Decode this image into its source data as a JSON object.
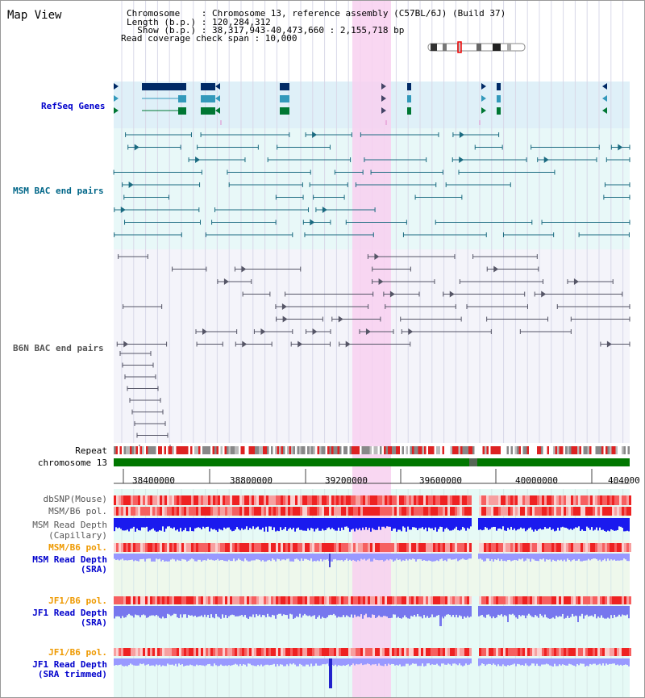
{
  "header": {
    "title": "Map View",
    "info_lines": [
      "Chromosome    : Chromosome 13, reference assembly (C57BL/6J) (Build 37)",
      "Length (b.p.) : 120,284,312",
      "  Show (b.p.) : 38,317,943-40,473,660 : 2,155,718 bp",
      "Read coverage check span : 10,000"
    ]
  },
  "tracks": {
    "refseq": "RefSeq Genes",
    "msm_bac": "MSM BAC end pairs",
    "b6n_bac": "B6N BAC end pairs",
    "repeat": "Repeat",
    "chromosome": "chromosome 13",
    "dbsnp": "dbSNP(Mouse)",
    "msm_b6_pol_1": "MSM/B6 pol.",
    "msm_read_depth_cap_1": "MSM Read Depth",
    "msm_read_depth_cap_2": "(Capillary)",
    "msm_b6_pol_2": "MSM/B6 pol.",
    "msm_read_depth_sra_1": "MSM Read Depth",
    "msm_read_depth_sra_2": "(SRA)",
    "jf1_b6_pol_1": "JF1/B6 pol.",
    "jf1_read_depth_sra_1": "JF1 Read Depth",
    "jf1_read_depth_sra_2": "(SRA)",
    "jf1_b6_pol_2": "JF1/B6 pol.",
    "jf1_read_depth_trim_1": "JF1 Read Depth",
    "jf1_read_depth_trim_2": "(SRA trimmed)"
  },
  "axis_ticks": [
    "38400000",
    "38800000",
    "39200000",
    "39600000",
    "40000000",
    "404000"
  ],
  "colors": {
    "refseq_bg": "#dff0f8",
    "msm_bg": "#e8f8f8",
    "highlight": "#f8d0f0",
    "refseq_label": "#0000cc",
    "msm_label": "#006688",
    "b6n_label": "#555555",
    "orange_label": "#ee9900",
    "blue_label": "#0000cc",
    "chrom_green": "#007700"
  }
}
